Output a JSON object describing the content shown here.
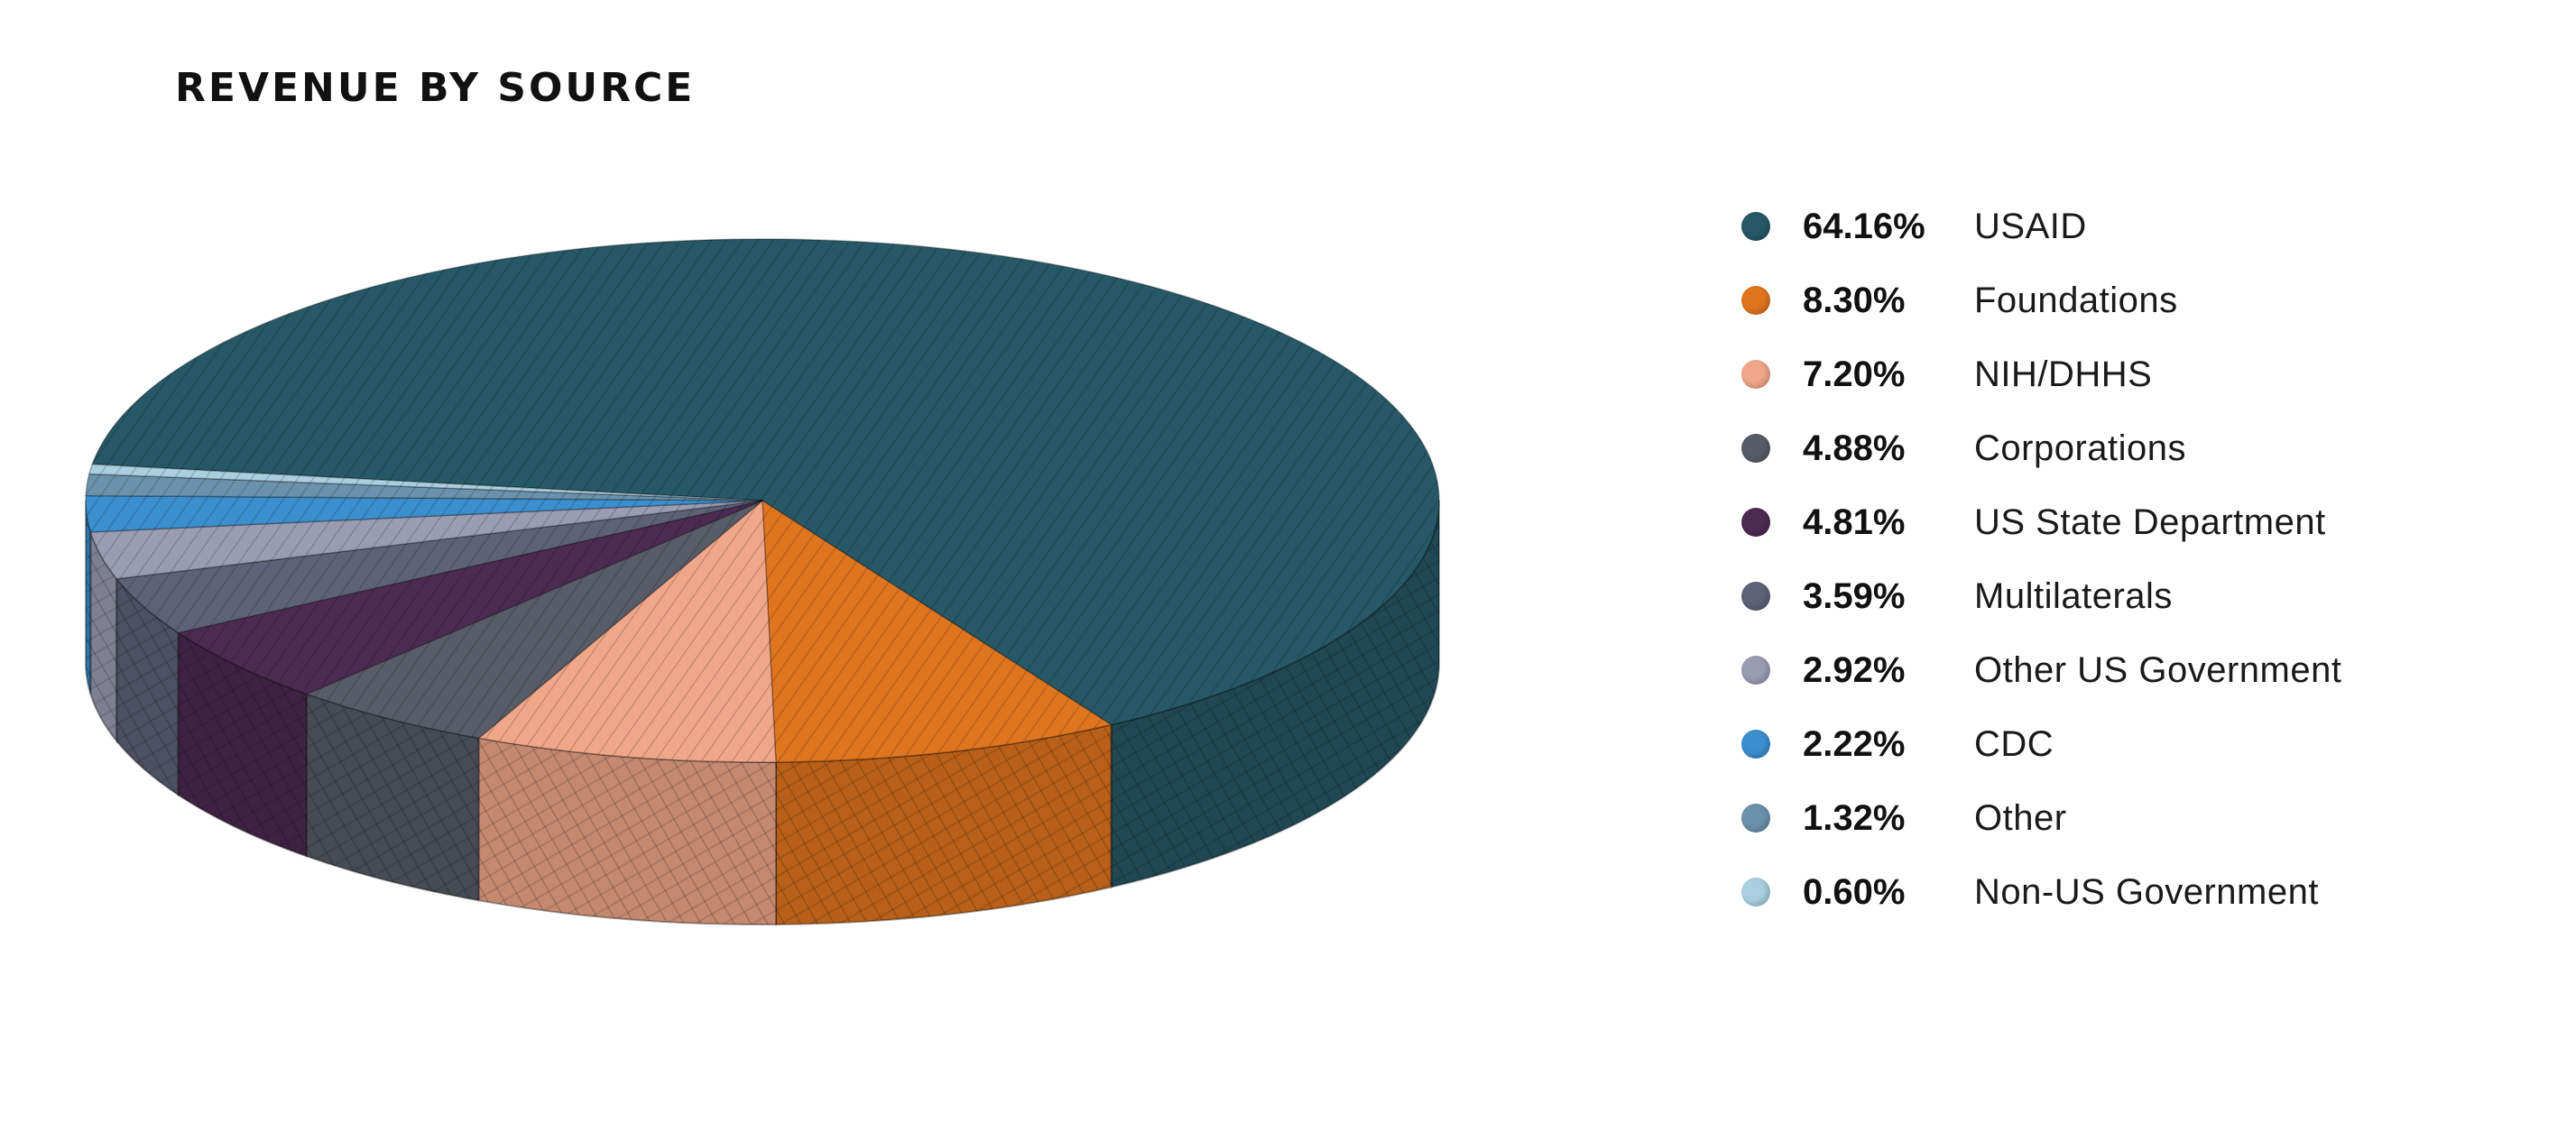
{
  "chart_data": {
    "type": "pie",
    "title": "REVENUE BY SOURCE",
    "legend_position": "right",
    "slices": [
      {
        "label": "USAID",
        "value": 64.16,
        "value_label": "64.16%",
        "color": "#265867"
      },
      {
        "label": "Foundations",
        "value": 8.3,
        "value_label": "8.30%",
        "color": "#e0751f"
      },
      {
        "label": "NIH/DHHS",
        "value": 7.2,
        "value_label": "7.20%",
        "color": "#f0a789"
      },
      {
        "label": "Corporations",
        "value": 4.88,
        "value_label": "4.88%",
        "color": "#575c68"
      },
      {
        "label": "US State Department",
        "value": 4.81,
        "value_label": "4.81%",
        "color": "#4d2a52"
      },
      {
        "label": "Multilaterals",
        "value": 3.59,
        "value_label": "3.59%",
        "color": "#5d6277"
      },
      {
        "label": "Other US Government",
        "value": 2.92,
        "value_label": "2.92%",
        "color": "#9a9cb2"
      },
      {
        "label": "CDC",
        "value": 2.22,
        "value_label": "2.22%",
        "color": "#3b8fcf"
      },
      {
        "label": "Other",
        "value": 1.32,
        "value_label": "1.32%",
        "color": "#6b92ab"
      },
      {
        "label": "Non-US Government",
        "value": 0.6,
        "value_label": "0.60%",
        "color": "#a9cfe0"
      }
    ]
  }
}
